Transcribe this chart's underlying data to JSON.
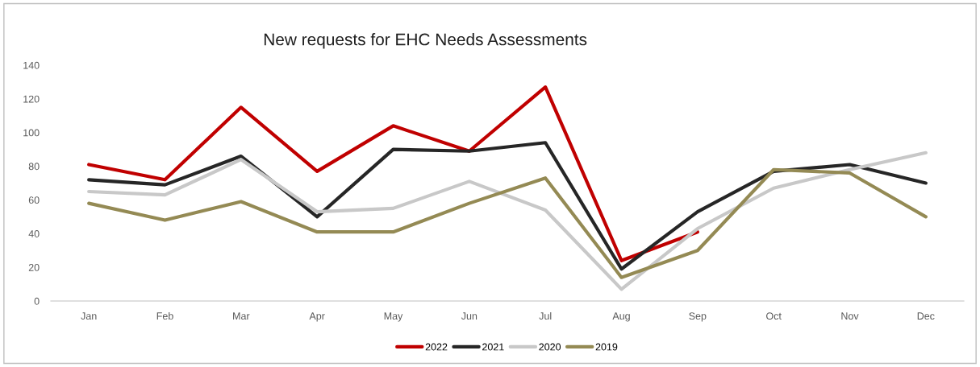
{
  "chart_data": {
    "type": "line",
    "title": "New requests for EHC Needs Assessments",
    "categories": [
      "Jan",
      "Feb",
      "Mar",
      "Apr",
      "May",
      "Jun",
      "Jul",
      "Aug",
      "Sep",
      "Oct",
      "Nov",
      "Dec"
    ],
    "series": [
      {
        "name": "2022",
        "color": "#c00000",
        "values": [
          81,
          72,
          115,
          77,
          104,
          89,
          127,
          24,
          41,
          null,
          null,
          null
        ]
      },
      {
        "name": "2021",
        "color": "#262626",
        "values": [
          72,
          69,
          86,
          50,
          90,
          89,
          94,
          19,
          53,
          77,
          81,
          70
        ]
      },
      {
        "name": "2020",
        "color": "#c8c8c8",
        "values": [
          65,
          63,
          84,
          53,
          55,
          71,
          54,
          7,
          43,
          67,
          78,
          88
        ]
      },
      {
        "name": "2019",
        "color": "#948a54",
        "values": [
          58,
          48,
          59,
          41,
          41,
          58,
          73,
          14,
          30,
          78,
          76,
          50
        ]
      }
    ],
    "ylim": [
      0,
      140
    ],
    "yticks": [
      0,
      20,
      40,
      60,
      80,
      100,
      120,
      140
    ],
    "grid": false,
    "legend": "bottom",
    "marker": "none",
    "line_style": "solid"
  }
}
